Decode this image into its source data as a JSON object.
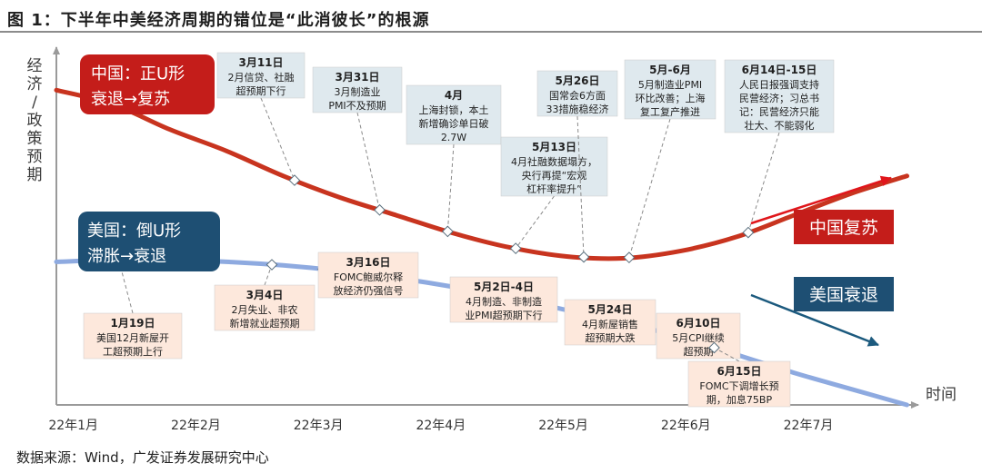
{
  "figure_title": "图 1：下半年中美经济周期的错位是“此消彼长”的根源",
  "source_note": "数据来源：Wind，广发证券发展研究中心",
  "colors": {
    "china": "#c8341f",
    "us": "#8eaae0",
    "us_dark": "#1e4f73",
    "event_orange_bg": "#fde8dc",
    "event_blue_bg": "#dfe9ee"
  },
  "chart_data": {
    "type": "line",
    "title": "下半年中美经济周期的错位是“此消彼长”的根源",
    "xlabel": "时间",
    "ylabel": "经济/政策预期",
    "x_ticks": [
      "22年1月",
      "22年2月",
      "22年3月",
      "22年4月",
      "22年5月",
      "22年6月",
      "22年7月"
    ],
    "series": [
      {
        "name": "中国",
        "label_lines": [
          "中国：正U形",
          "衰退→复苏"
        ],
        "trend_label": "中国复苏",
        "points": [
          [
            0.0,
            8.8
          ],
          [
            0.5,
            8.4
          ],
          [
            1.0,
            7.7
          ],
          [
            1.5,
            7.1
          ],
          [
            2.0,
            6.4
          ],
          [
            2.5,
            5.8
          ],
          [
            3.0,
            5.3
          ],
          [
            3.5,
            4.8
          ],
          [
            4.0,
            4.4
          ],
          [
            4.5,
            4.15
          ],
          [
            5.0,
            4.1
          ],
          [
            5.5,
            4.3
          ],
          [
            6.0,
            4.7
          ],
          [
            6.5,
            5.3
          ],
          [
            7.0,
            5.9
          ],
          [
            7.5,
            6.4
          ]
        ]
      },
      {
        "name": "美国",
        "label_lines": [
          "美国：倒U形",
          "滞胀→衰退"
        ],
        "trend_label": "美国衰退",
        "points": [
          [
            0.0,
            4.0
          ],
          [
            0.5,
            4.05
          ],
          [
            1.0,
            4.05
          ],
          [
            1.5,
            4.0
          ],
          [
            2.0,
            3.9
          ],
          [
            2.5,
            3.75
          ],
          [
            3.0,
            3.55
          ],
          [
            3.5,
            3.3
          ],
          [
            4.0,
            3.0
          ],
          [
            4.5,
            2.65
          ],
          [
            5.0,
            2.3
          ],
          [
            5.5,
            1.9
          ],
          [
            6.0,
            1.4
          ],
          [
            6.5,
            0.9
          ],
          [
            7.0,
            0.45
          ],
          [
            7.5,
            0.0
          ]
        ]
      }
    ],
    "events": [
      {
        "country": "us",
        "date": "1月19日",
        "lines": [
          "美国12月新屋开",
          "工超预期上行"
        ],
        "x": 0.55
      },
      {
        "country": "cn",
        "date": "3月11日",
        "lines": [
          "2月信贷、社融",
          "超预期下行"
        ],
        "x": 2.1
      },
      {
        "country": "us",
        "date": "3月4日",
        "lines": [
          "2月失业、非农",
          "新增就业超预期"
        ],
        "x": 1.9
      },
      {
        "country": "cn",
        "date": "3月31日",
        "lines": [
          "3月制造业",
          "PMI不及预期"
        ],
        "x": 2.85
      },
      {
        "country": "us",
        "date": "3月16日",
        "lines": [
          "FOMC鲍威尔释",
          "放经济仍强信号"
        ],
        "x": 2.35
      },
      {
        "country": "cn",
        "date": "4月",
        "lines": [
          "上海封锁，本土",
          "新增确诊单日破",
          "2.7W"
        ],
        "x": 3.45
      },
      {
        "country": "cn",
        "date": "5月13日",
        "lines": [
          "4月社融数据塌方，",
          "央行再提“宏观",
          "杠杆率提升”"
        ],
        "x": 4.05
      },
      {
        "country": "us",
        "date": "5月2日-4日",
        "lines": [
          "4月制造、非制造",
          "业PMI超预期下行"
        ],
        "x": 3.95
      },
      {
        "country": "cn",
        "date": "5月26日",
        "lines": [
          "国常会6方面",
          "33措施稳经济"
        ],
        "x": 4.65
      },
      {
        "country": "us",
        "date": "5月24日",
        "lines": [
          "4月新屋销售",
          "超预期大跌"
        ],
        "x": 4.85
      },
      {
        "country": "cn",
        "date": "5月-6月",
        "lines": [
          "5月制造业PMI",
          "环比改善；上海",
          "复工复产推进"
        ],
        "x": 5.05
      },
      {
        "country": "us",
        "date": "6月10日",
        "lines": [
          "5月CPI继续",
          "超预期"
        ],
        "x": 5.55
      },
      {
        "country": "cn",
        "date": "6月14日-15日",
        "lines": [
          "人民日报强调支持",
          "民营经济；习总书",
          "记：民营经济只能",
          "壮大、不能弱化"
        ],
        "x": 6.1
      },
      {
        "country": "us",
        "date": "6月15日",
        "lines": [
          "FOMC下调增长预",
          "期，加息75BP"
        ],
        "x": 5.8
      }
    ]
  }
}
